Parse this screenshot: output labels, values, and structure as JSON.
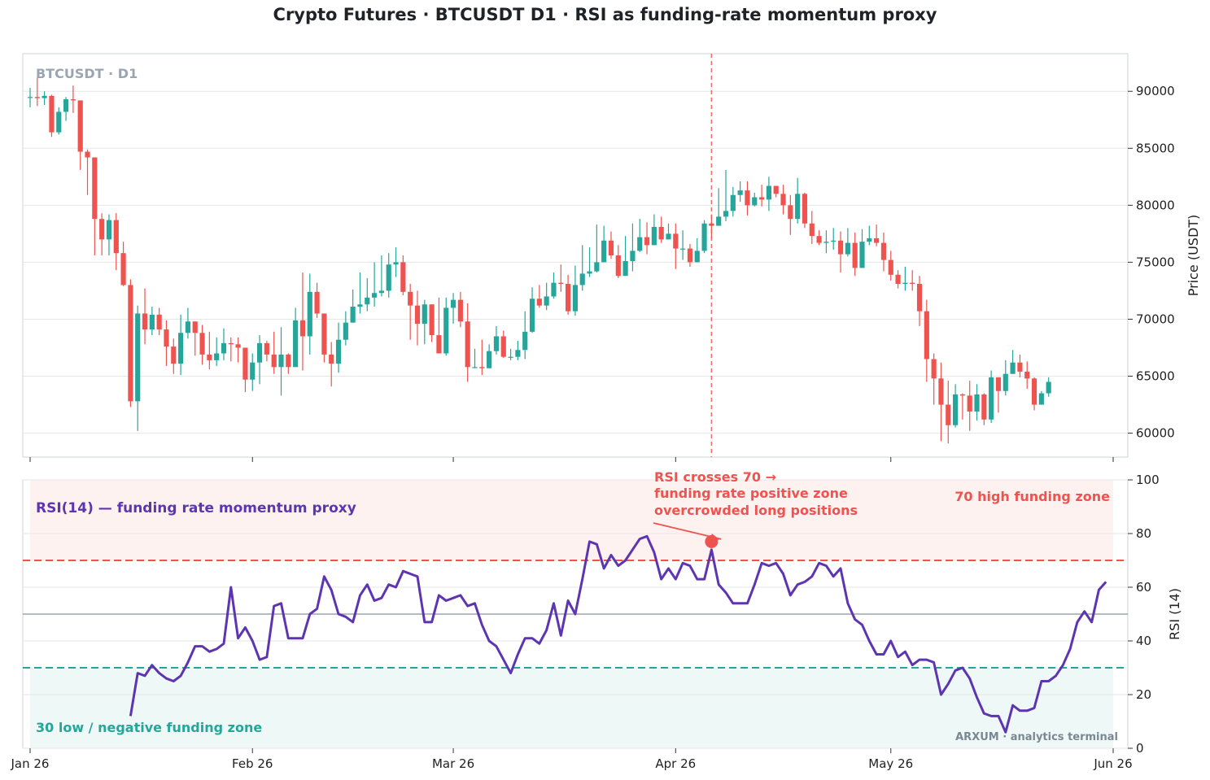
{
  "chart_title": "Crypto Futures · BTCUSDT D1 · RSI as funding-rate momentum proxy",
  "watermark_symbol": "BTCUSDT · D1",
  "watermark_brand": "ARXUM · analytics terminal",
  "colors": {
    "up": "#26a69a",
    "down": "#ef5350",
    "rsi_line": "#5e35b1",
    "overbought": "#ef5350",
    "oversold": "#26a69a",
    "midline": "#9aa5b1",
    "grid": "#e6e6e6"
  },
  "chart_data": [
    {
      "type": "candlestick",
      "title": "",
      "ylabel": "Price (USDT)",
      "ylim": [
        57900,
        93300
      ],
      "yticks": [
        60000,
        65000,
        70000,
        75000,
        80000,
        85000,
        90000
      ],
      "x_start": "2026-01-01",
      "x_end": "2026-06-01",
      "xticks": [
        {
          "date": "2026-01-01",
          "label": "Jan 26"
        },
        {
          "date": "2026-02-01",
          "label": "Feb 26"
        },
        {
          "date": "2026-03-01",
          "label": "Mar 26"
        },
        {
          "date": "2026-04-01",
          "label": "Apr 26"
        },
        {
          "date": "2026-05-01",
          "label": "May 26"
        },
        {
          "date": "2026-06-01",
          "label": "Jun 26"
        }
      ],
      "event_marker_date": "2026-04-06",
      "grid": "horizontal",
      "closes": [
        89500,
        89400,
        89600,
        86400,
        88200,
        89300,
        89200,
        84700,
        84200,
        78800,
        77000,
        78700,
        75800,
        73000,
        62800,
        70500,
        69100,
        70400,
        69100,
        67600,
        66100,
        68800,
        69800,
        68800,
        66900,
        66400,
        67000,
        67900,
        67800,
        67500,
        64700,
        66200,
        67900,
        66900,
        65800,
        66900,
        65800,
        69900,
        68500,
        72400,
        70500,
        66900,
        66100,
        68200,
        69700,
        71100,
        71300,
        71900,
        72300,
        72500,
        74800,
        75000,
        72400,
        71200,
        69600,
        71300,
        68600,
        67000,
        71000,
        71700,
        69800,
        65800,
        65800,
        65700,
        67200,
        68500,
        66700,
        66700,
        67300,
        68900,
        71800,
        71200,
        72000,
        73200,
        73100,
        70700,
        73000,
        74000,
        74200,
        75000,
        76900,
        75600,
        73800,
        75100,
        76000,
        77200,
        76500,
        78100,
        77000,
        77500,
        76200,
        76200,
        75000,
        76000,
        78400,
        78200,
        79000,
        79500,
        80900,
        81300,
        80000,
        80700,
        80500,
        81700,
        81000,
        80000,
        78800,
        81000,
        78400,
        77300,
        76700,
        76800,
        76900,
        75700,
        76700,
        74500,
        76800,
        77100,
        76700,
        75200,
        73900,
        73100,
        73200,
        73100,
        70700,
        66500,
        64800,
        62500,
        60700,
        63400,
        63300,
        61900,
        63400,
        61200,
        64900,
        63700,
        65200,
        66200,
        65400,
        64800,
        62500,
        63500,
        64500
      ],
      "lows": [
        88600,
        88700,
        88800,
        86000,
        86200,
        87400,
        88100,
        83100,
        80900,
        75600,
        75600,
        75600,
        74300,
        72900,
        62300,
        60200,
        67800,
        68600,
        68600,
        65900,
        65200,
        65100,
        68300,
        66800,
        66000,
        65600,
        65900,
        66400,
        66300,
        66200,
        63600,
        63700,
        64300,
        66300,
        65200,
        63300,
        65200,
        65900,
        65500,
        66900,
        70100,
        66200,
        64100,
        65300,
        67700,
        69700,
        70500,
        70700,
        71100,
        72000,
        71900,
        73700,
        72100,
        68200,
        67700,
        67800,
        68000,
        67000,
        66800,
        69600,
        69300,
        64500,
        65700,
        65100,
        65900,
        66900,
        66600,
        66400,
        66400,
        66500,
        68800,
        71000,
        70800,
        71800,
        72400,
        70400,
        70300,
        72500,
        73700,
        74100,
        75100,
        75300,
        73600,
        73800,
        74200,
        75900,
        75700,
        76500,
        76700,
        77300,
        74400,
        75200,
        74600,
        75800,
        75800,
        77100,
        78400,
        78600,
        79000,
        80300,
        79100,
        79900,
        79900,
        79500,
        80700,
        79200,
        77400,
        78400,
        78000,
        76600,
        76500,
        75800,
        76100,
        74100,
        75500,
        73800,
        75500,
        76500,
        76400,
        74200,
        73400,
        72700,
        72500,
        72500,
        69400,
        64500,
        62500,
        59300,
        59100,
        60500,
        61200,
        60200,
        61100,
        60700,
        60900,
        61800,
        63300,
        65300,
        64900,
        63900,
        62000,
        62600,
        63200
      ],
      "highs": [
        90300,
        91200,
        90000,
        89700,
        88600,
        89500,
        90500,
        89000,
        84900,
        84200,
        79300,
        79200,
        79300,
        76800,
        73500,
        71200,
        72700,
        71100,
        71000,
        69900,
        68300,
        70400,
        71000,
        69800,
        69500,
        68900,
        68400,
        69200,
        68400,
        68400,
        67200,
        67000,
        68600,
        68100,
        68900,
        69300,
        67000,
        71000,
        74100,
        74000,
        73200,
        70400,
        68000,
        69700,
        70700,
        72600,
        74100,
        73600,
        75000,
        75600,
        75800,
        76300,
        75600,
        73100,
        72500,
        71700,
        71200,
        71900,
        71900,
        72300,
        72400,
        71400,
        67400,
        68200,
        67800,
        69400,
        69000,
        67400,
        68100,
        70700,
        72800,
        73000,
        73200,
        74100,
        74800,
        73900,
        74700,
        76500,
        76300,
        78300,
        78200,
        77700,
        76500,
        77300,
        78400,
        78800,
        78500,
        79200,
        79000,
        78400,
        78400,
        77800,
        76600,
        77100,
        78700,
        79200,
        81500,
        83100,
        81600,
        82100,
        82100,
        81100,
        81800,
        82500,
        81600,
        81800,
        80900,
        82400,
        81100,
        79500,
        77800,
        77800,
        78000,
        77700,
        78000,
        77600,
        77900,
        78200,
        78300,
        77600,
        76000,
        74300,
        74600,
        74300,
        73800,
        71700,
        67000,
        66200,
        64600,
        64300,
        63500,
        64600,
        64300,
        63500,
        65500,
        64800,
        66400,
        67300,
        66900,
        66300,
        64900,
        63700,
        64900
      ]
    },
    {
      "type": "line",
      "title": "RSI(14) — funding rate momentum proxy",
      "ylabel": "RSI (14)",
      "ylim": [
        0,
        100
      ],
      "yticks": [
        0,
        20,
        40,
        60,
        80,
        100
      ],
      "grid": "horizontal",
      "thresholds": [
        {
          "value": 70,
          "label": "70  high funding zone",
          "style": "dashed"
        },
        {
          "value": 50,
          "label": "",
          "style": "solid"
        },
        {
          "value": 30,
          "label": "30  low / negative funding zone",
          "style": "dashed"
        }
      ],
      "series": [
        {
          "name": "",
          "start_date": "2026-01-15",
          "values": [
            12,
            28,
            27,
            31,
            28,
            26,
            25,
            27,
            32,
            38,
            38,
            36,
            37,
            39,
            60,
            41,
            45,
            40,
            33,
            34,
            53,
            54,
            41,
            41,
            41,
            50,
            52,
            64,
            59,
            50,
            49,
            47,
            57,
            61,
            55,
            56,
            61,
            60,
            66,
            65,
            64,
            47,
            47,
            57,
            55,
            56,
            57,
            53,
            54,
            46,
            40,
            38,
            33,
            28,
            35,
            41,
            41,
            39,
            44,
            54,
            42,
            55,
            50,
            63,
            77,
            76,
            67,
            72,
            68,
            70,
            74,
            78,
            79,
            73,
            63,
            67,
            63,
            69,
            68,
            63,
            63,
            74,
            61,
            58,
            54,
            54,
            54,
            61,
            69,
            68,
            69,
            65,
            57,
            61,
            62,
            64,
            69,
            68,
            64,
            67,
            54,
            48,
            46,
            40,
            35,
            35,
            40,
            34,
            36,
            31,
            33,
            33,
            32,
            20,
            24,
            29,
            30,
            26,
            19,
            13,
            12,
            12,
            6,
            16,
            14,
            14,
            15,
            25,
            25,
            27,
            31,
            37,
            47,
            51,
            47,
            59,
            62
          ]
        }
      ],
      "annotation": {
        "lines": [
          "RSI crosses 70 →",
          "funding rate positive zone",
          "overcrowded long positions"
        ],
        "target_date": "2026-04-06",
        "target_value": 77
      }
    }
  ]
}
